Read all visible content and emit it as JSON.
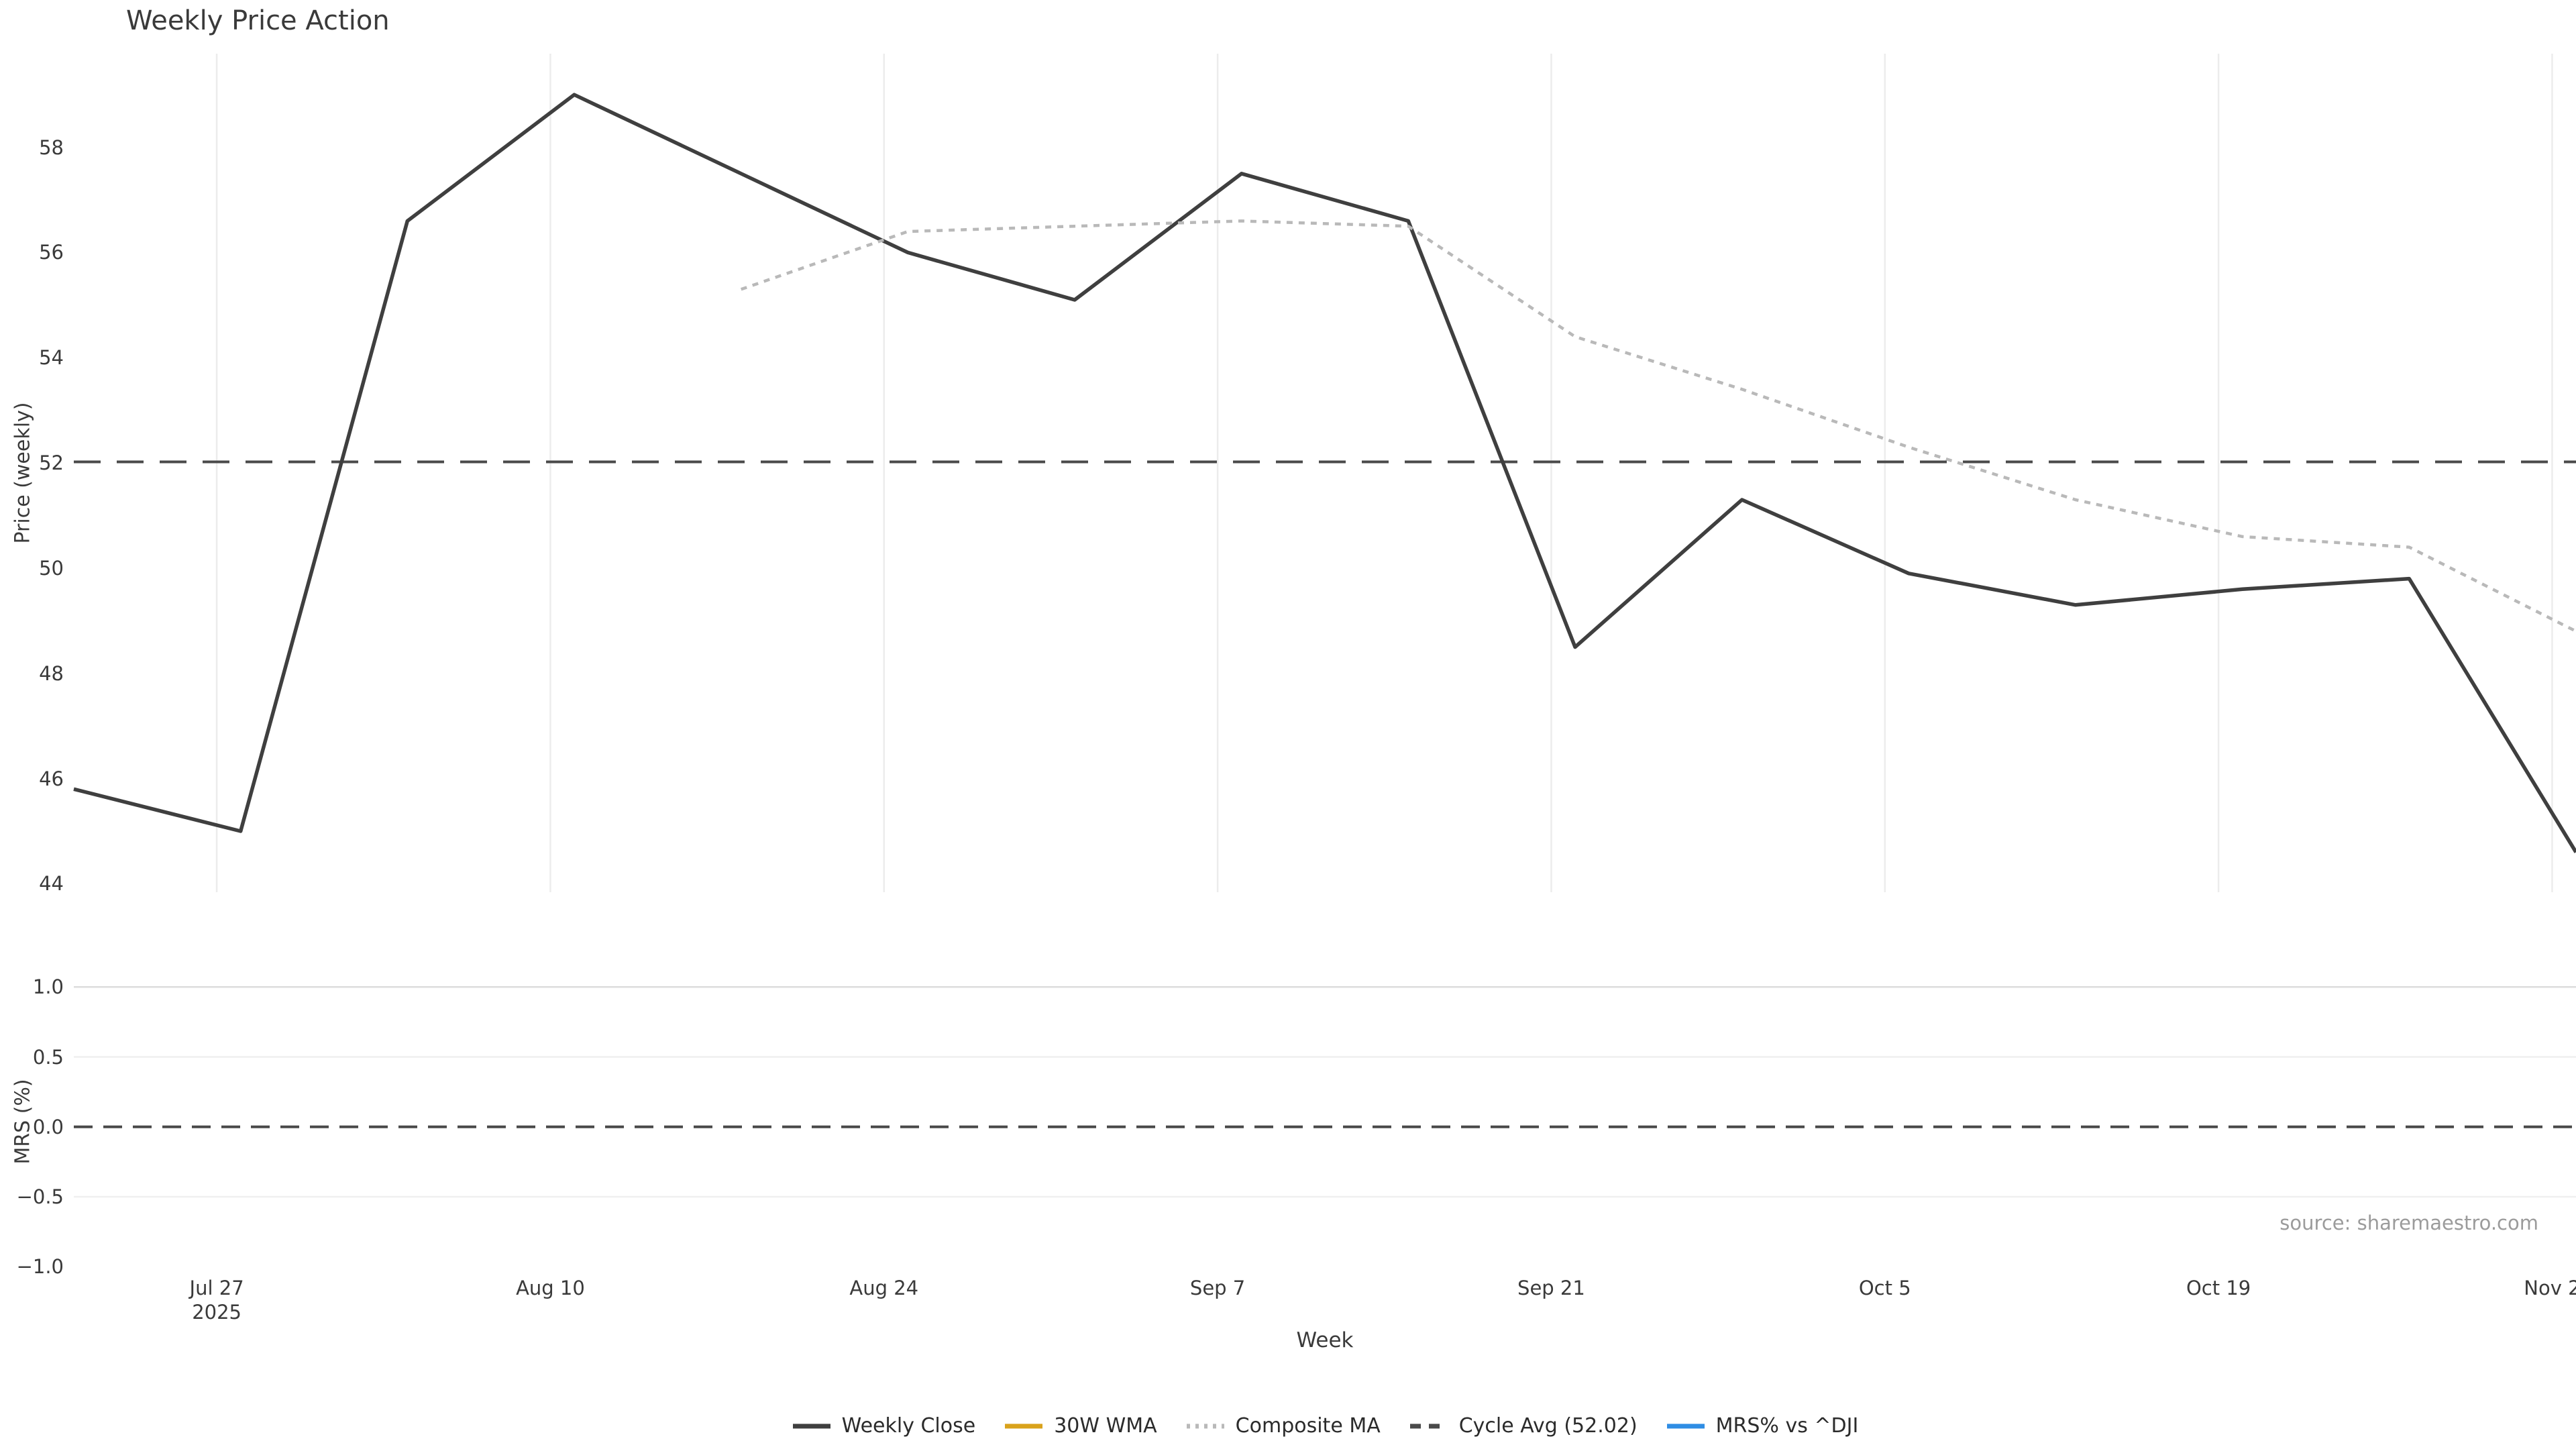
{
  "title": "Weekly Price Action",
  "source": "source: sharemaestro.com",
  "accent_colors": {
    "weekly_close": "#3f3f3f",
    "wma_30w": "#d9a21b",
    "composite_ma": "#b9b9b9",
    "cycle_avg": "#4a4a4a",
    "mrs_line": "#2f8de4",
    "grid_light": "#ececec",
    "grid_medium": "#dcdcdc",
    "text": "#3a3a3a",
    "muted_text": "#9b9b9b"
  },
  "chart_data": [
    {
      "type": "line",
      "title": "Weekly Price Action",
      "xlabel": "Week",
      "ylabel": "Price (weekly)",
      "x": [
        "Jul 21",
        "Jul 28",
        "Aug 4",
        "Aug 11",
        "Aug 18",
        "Aug 25",
        "Sep 1",
        "Sep 8",
        "Sep 15",
        "Sep 22",
        "Sep 29",
        "Oct 6",
        "Oct 13",
        "Oct 20",
        "Oct 27",
        "Nov 3"
      ],
      "x_year": "2025",
      "series": [
        {
          "name": "Weekly Close",
          "style": "solid",
          "color": "#3f3f3f",
          "width": 5.5,
          "values": [
            45.8,
            45.0,
            56.6,
            59.0,
            57.5,
            56.0,
            55.1,
            57.5,
            56.6,
            48.5,
            51.3,
            49.9,
            49.3,
            49.6,
            49.8,
            44.6
          ]
        },
        {
          "name": "30W WMA",
          "style": "solid",
          "color": "#d9a21b",
          "width": 5,
          "values": [
            null,
            null,
            null,
            null,
            null,
            null,
            null,
            null,
            null,
            null,
            null,
            null,
            null,
            null,
            null,
            null
          ]
        },
        {
          "name": "Composite MA",
          "style": "dotted",
          "color": "#b9b9b9",
          "width": 4.5,
          "values": [
            null,
            null,
            null,
            null,
            55.3,
            56.4,
            56.5,
            56.6,
            56.5,
            54.4,
            53.4,
            52.3,
            51.3,
            50.6,
            50.4,
            48.8
          ]
        },
        {
          "name": "Cycle Avg (52.02)",
          "style": "dashed",
          "color": "#4a4a4a",
          "width": 4,
          "constant": 52.02
        }
      ],
      "ylim": [
        43.84,
        59.78
      ],
      "yticks": [
        {
          "v": 44,
          "label": "44"
        },
        {
          "v": 46,
          "label": "46"
        },
        {
          "v": 48,
          "label": "48"
        },
        {
          "v": 50,
          "label": "50"
        },
        {
          "v": 52,
          "label": "52"
        },
        {
          "v": 54,
          "label": "54"
        },
        {
          "v": 56,
          "label": "56"
        },
        {
          "v": 58,
          "label": "58"
        }
      ],
      "xticks": [
        {
          "week": 0.857,
          "label": "Jul 27",
          "sublabel": "2025"
        },
        {
          "week": 2.857,
          "label": "Aug 10"
        },
        {
          "week": 4.857,
          "label": "Aug 24"
        },
        {
          "week": 6.857,
          "label": "Sep 7"
        },
        {
          "week": 8.857,
          "label": "Sep 21"
        },
        {
          "week": 10.857,
          "label": "Oct 5"
        },
        {
          "week": 12.857,
          "label": "Oct 19"
        },
        {
          "week": 14.857,
          "label": "Nov 2"
        }
      ],
      "grid": "vertical",
      "legend_position": "bottom"
    },
    {
      "type": "line",
      "ylabel": "MRS (%)",
      "series": [
        {
          "name": "MRS% vs ^DJI",
          "style": "solid",
          "color": "#2f8de4",
          "width": 5,
          "values": []
        },
        {
          "name": "zero-reference",
          "style": "dashed",
          "color": "#4a4a4a",
          "width": 4,
          "constant": 0.0
        }
      ],
      "ylim": [
        -1.08,
        1.15
      ],
      "yticks": [
        {
          "v": 1.0,
          "label": "1.0"
        },
        {
          "v": 0.5,
          "label": "0.5"
        },
        {
          "v": 0.0,
          "label": "0.0"
        },
        {
          "v": -0.5,
          "label": "−0.5"
        },
        {
          "v": -1.0,
          "label": "−1.0"
        }
      ],
      "grid": "horizontal"
    }
  ],
  "legend": [
    {
      "label": "Weekly Close",
      "style": "solid",
      "color": "#3f3f3f"
    },
    {
      "label": "30W WMA",
      "style": "solid",
      "color": "#d9a21b"
    },
    {
      "label": "Composite MA",
      "style": "dotted",
      "color": "#b9b9b9"
    },
    {
      "label": "Cycle Avg (52.02)",
      "style": "dashed",
      "color": "#4a4a4a"
    },
    {
      "label": "MRS% vs ^DJI",
      "style": "solid",
      "color": "#2f8de4"
    }
  ]
}
